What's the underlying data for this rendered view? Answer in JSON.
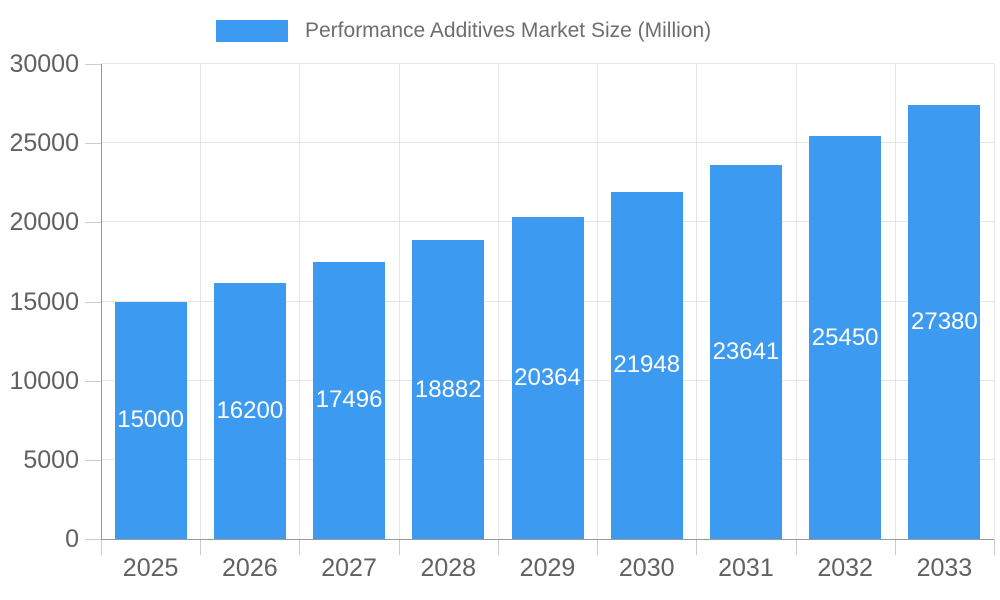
{
  "chart_data": {
    "type": "bar",
    "title": "Performance Additives Market Size (Million)",
    "series_name": "Performance Additives Market Size (Million)",
    "categories": [
      "2025",
      "2026",
      "2027",
      "2028",
      "2029",
      "2030",
      "2031",
      "2032",
      "2033"
    ],
    "values": [
      15000,
      16200,
      17496,
      18882,
      20364,
      21948,
      23641,
      25450,
      27380
    ],
    "value_labels": [
      "15000",
      "16200",
      "17496",
      "18882",
      "20364",
      "21948",
      "23641",
      "25450",
      "27380"
    ],
    "xlabel": "",
    "ylabel": "",
    "ylim": [
      0,
      30000
    ],
    "yticks": [
      0,
      5000,
      10000,
      15000,
      20000,
      25000,
      30000
    ],
    "ytick_labels": [
      "0",
      "5000",
      "10000",
      "15000",
      "20000",
      "25000",
      "30000"
    ],
    "grid": true,
    "legend_position": "top",
    "value_label_position": "inside-middle",
    "colors": {
      "bar": "#3C9AF0",
      "gridline": "#e6e6e6",
      "axis_line": "#999999",
      "tick": "#cccccc",
      "axis_text": "#616161",
      "legend_text": "#6e6e6e",
      "value_text": "#ffffff",
      "background": "#ffffff"
    }
  }
}
